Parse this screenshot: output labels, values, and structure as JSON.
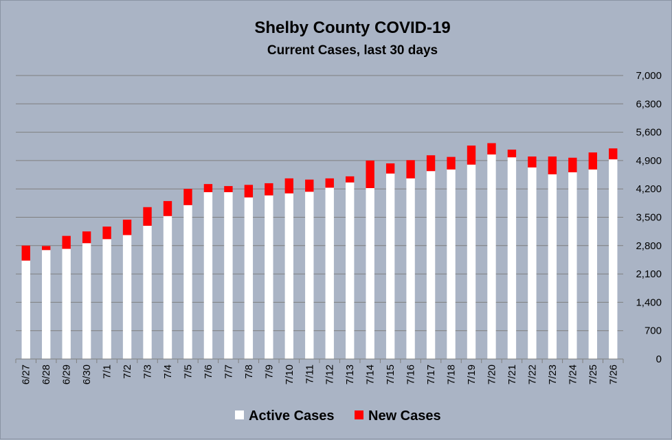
{
  "chart_data": {
    "type": "bar",
    "stacked": true,
    "title": "Shelby County COVID-19",
    "subtitle": "Current Cases, last 30 days",
    "categories": [
      "6/27",
      "6/28",
      "6/29",
      "6/30",
      "7/1",
      "7/2",
      "7/3",
      "7/4",
      "7/5",
      "7/6",
      "7/7",
      "7/8",
      "7/9",
      "7/10",
      "7/11",
      "7/12",
      "7/13",
      "7/14",
      "7/15",
      "7/16",
      "7/17",
      "7/18",
      "7/19",
      "7/20",
      "7/21",
      "7/22",
      "7/23",
      "7/24",
      "7/25",
      "7/26"
    ],
    "series": [
      {
        "name": "Active Cases",
        "color": "#ffffff",
        "values": [
          2430,
          2690,
          2720,
          2860,
          2960,
          3060,
          3290,
          3530,
          3800,
          4120,
          4120,
          3990,
          4040,
          4090,
          4130,
          4230,
          4360,
          4220,
          4580,
          4460,
          4640,
          4680,
          4800,
          5050,
          4980,
          4730,
          4560,
          4610,
          4680,
          4930
        ]
      },
      {
        "name": "New Cases",
        "color": "#ff0000",
        "values": [
          370,
          100,
          320,
          290,
          310,
          380,
          460,
          370,
          400,
          200,
          150,
          310,
          300,
          370,
          300,
          230,
          150,
          680,
          250,
          450,
          390,
          310,
          470,
          280,
          190,
          270,
          440,
          360,
          420,
          270
        ]
      }
    ],
    "ylim": [
      0,
      7000
    ],
    "yticks": [
      0,
      700,
      1400,
      2100,
      2800,
      3500,
      4200,
      4900,
      5600,
      6300,
      7000
    ],
    "ytick_labels": [
      "0",
      "700",
      "1,400",
      "2,100",
      "2,800",
      "3,500",
      "4,200",
      "4,900",
      "5,600",
      "6,300",
      "7,000"
    ],
    "y_axis_side": "right",
    "grid": true,
    "legend_position": "bottom"
  }
}
